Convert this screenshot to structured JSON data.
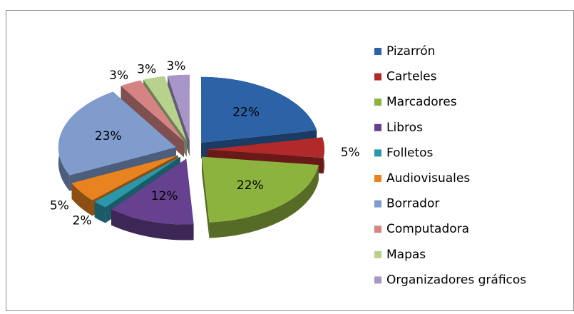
{
  "chart_data": {
    "type": "pie",
    "categories": [
      "Pizarrón",
      "Carteles",
      "Marcadores",
      "Libros",
      "Folletos",
      "Audiovisuales",
      "Borrador",
      "Computadora",
      "Mapas",
      "Organizadores gráficos"
    ],
    "values": [
      22,
      5,
      22,
      12,
      2,
      5,
      23,
      3,
      3,
      3
    ],
    "value_labels": [
      "22%",
      "5%",
      "22%",
      "12%",
      "2%",
      "5%",
      "23%",
      "3%",
      "3%",
      "3%"
    ],
    "colors": [
      "#2c62a6",
      "#b02a2a",
      "#8db33f",
      "#65418f",
      "#2b97ab",
      "#e8831f",
      "#7f9ccd",
      "#d58483",
      "#b6d28c",
      "#a996c8"
    ],
    "legend": "right"
  }
}
